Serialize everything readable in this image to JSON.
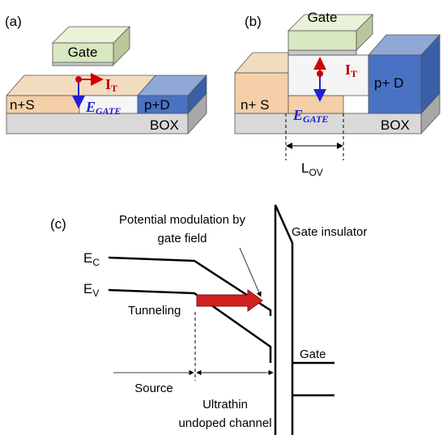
{
  "panel_a": {
    "label": "(a)",
    "gate": "Gate",
    "source": "n+S",
    "current": {
      "symbol": "I",
      "subscript": "T"
    },
    "field": {
      "symbol": "E",
      "subscript": "GATE"
    },
    "drain": "p+D",
    "box": "BOX"
  },
  "panel_b": {
    "label": "(b)",
    "gate": "Gate",
    "source": "n+ S",
    "current": {
      "symbol": "I",
      "subscript": "T"
    },
    "field": {
      "symbol": "E",
      "subscript": "GATE"
    },
    "drain": "p+ D",
    "box": "BOX",
    "overlap": {
      "symbol": "L",
      "subscript": "OV"
    }
  },
  "panel_c": {
    "label": "(c)",
    "annotation": [
      "Potential modulation by",
      "gate field"
    ],
    "gate_insulator": "Gate insulator",
    "conduction_band": {
      "symbol": "E",
      "subscript": "C"
    },
    "valence_band": {
      "symbol": "E",
      "subscript": "V"
    },
    "tunneling": "Tunneling",
    "gate": "Gate",
    "source": "Source",
    "channel": [
      "Ultrathin",
      "undoped channel"
    ]
  }
}
